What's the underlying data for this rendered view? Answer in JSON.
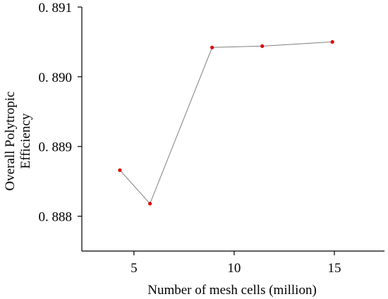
{
  "chart_data": {
    "type": "line",
    "title": "",
    "xlabel": "Number of mesh cells (million)",
    "ylabel_lines": [
      "Overall Polytropic",
      "Efficiency"
    ],
    "xlim": [
      2.4,
      17.5
    ],
    "ylim": [
      0.8875,
      0.891
    ],
    "x_ticks": [
      5,
      10,
      15
    ],
    "y_ticks": [
      0.888,
      0.889,
      0.89,
      0.891
    ],
    "x_tick_labels": [
      "5",
      "10",
      "15"
    ],
    "y_tick_labels": [
      "0. 888",
      "0. 889",
      "0. 890",
      "0. 891"
    ],
    "series": [
      {
        "x": [
          4.3,
          5.8,
          8.9,
          11.4,
          14.9
        ],
        "y": [
          0.88866,
          0.88818,
          0.89042,
          0.89044,
          0.8905
        ]
      }
    ],
    "marker_color": "#e00000",
    "line_color": "#808080",
    "grid": false
  }
}
